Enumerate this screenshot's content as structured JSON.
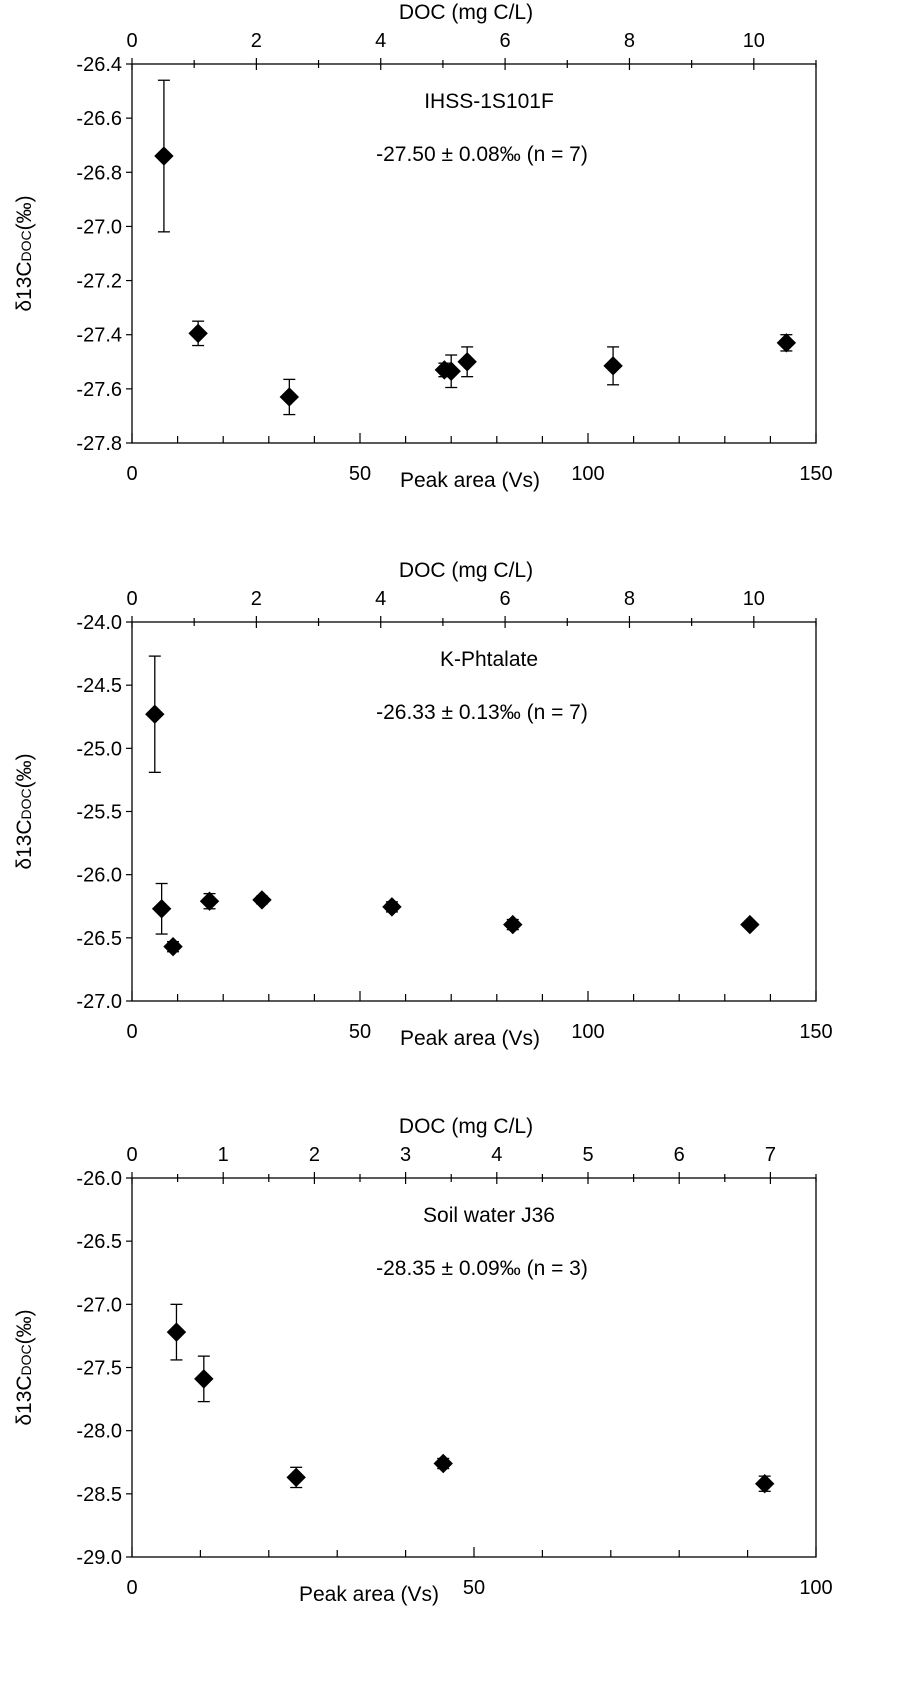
{
  "chart_data": [
    {
      "type": "scatter",
      "title": "IHSS-1S101F",
      "annotation": "-27.50 ± 0.08‰ (n = 7)",
      "xlabel": "Peak area (Vs)",
      "x2label": "DOC (mg C/L)",
      "ylabel": "δ13CDOC(‰)",
      "ylabel_main": "δ13C",
      "ylabel_sub": "DOC",
      "ylabel_tail": "(‰)",
      "xlim": [
        0,
        150
      ],
      "x2lim": [
        0,
        11
      ],
      "ylim": [
        -27.8,
        -26.4
      ],
      "xticks": [
        0,
        50,
        100,
        150
      ],
      "xticks_labels": [
        "0",
        "50",
        "100",
        "150"
      ],
      "x_minor_step": 10,
      "x2ticks": [
        0,
        2,
        4,
        6,
        8,
        10
      ],
      "x2ticks_labels": [
        "0",
        "2",
        "4",
        "6",
        "8",
        "10"
      ],
      "x2_minor_step": 1,
      "yticks": [
        -26.4,
        -26.6,
        -26.8,
        -27.0,
        -27.2,
        -27.4,
        -27.6,
        -27.8
      ],
      "yticks_labels": [
        "-26.4",
        "-26.6",
        "-26.8",
        "-27.0",
        "-27.2",
        "-27.4",
        "-27.6",
        "-27.8"
      ],
      "grid": false,
      "marker": "diamond",
      "color": "#000000",
      "series": [
        {
          "x": [
            7,
            14.5,
            34.5,
            68.5,
            70,
            73.5,
            105.5,
            143.5
          ],
          "y": [
            -26.74,
            -27.395,
            -27.63,
            -27.53,
            -27.535,
            -27.5,
            -27.515,
            -27.43
          ],
          "err": [
            0.28,
            0.045,
            0.065,
            0.025,
            0.06,
            0.055,
            0.07,
            0.03
          ]
        }
      ]
    },
    {
      "type": "scatter",
      "title": "K-Phtalate",
      "annotation": "-26.33 ± 0.13‰ (n = 7)",
      "xlabel": "Peak area (Vs)",
      "x2label": "DOC (mg C/L)",
      "ylabel": "δ13CDOC(‰)",
      "ylabel_main": "δ13C",
      "ylabel_sub": "DOC",
      "ylabel_tail": "(‰)",
      "xlim": [
        0,
        150
      ],
      "x2lim": [
        0,
        11
      ],
      "ylim": [
        -27.0,
        -24.0
      ],
      "xticks": [
        0,
        50,
        100,
        150
      ],
      "xticks_labels": [
        "0",
        "50",
        "100",
        "150"
      ],
      "x_minor_step": 10,
      "x2ticks": [
        0,
        2,
        4,
        6,
        8,
        10
      ],
      "x2ticks_labels": [
        "0",
        "2",
        "4",
        "6",
        "8",
        "10"
      ],
      "x2_minor_step": 1,
      "yticks": [
        -24.0,
        -24.5,
        -25.0,
        -25.5,
        -26.0,
        -26.5,
        -27.0
      ],
      "yticks_labels": [
        "-24.0",
        "-24.5",
        "-25.0",
        "-25.5",
        "-26.0",
        "-26.5",
        "-27.0"
      ],
      "grid": false,
      "marker": "diamond",
      "color": "#000000",
      "series": [
        {
          "x": [
            5,
            6.5,
            9,
            17,
            28.5,
            57,
            83.5,
            135.5
          ],
          "y": [
            -24.73,
            -26.27,
            -26.57,
            -26.21,
            -26.2,
            -26.255,
            -26.395,
            -26.395
          ],
          "err": [
            0.46,
            0.2,
            0.04,
            0.06,
            0.03,
            0.04,
            0.04,
            0.02
          ]
        }
      ]
    },
    {
      "type": "scatter",
      "title": "Soil water J36",
      "annotation": "-28.35 ± 0.09‰ (n = 3)",
      "xlabel": "Peak area (Vs)",
      "x2label": "DOC (mg C/L)",
      "ylabel": "δ13CDOC(‰)",
      "ylabel_main": "δ13C",
      "ylabel_sub": "DOC",
      "ylabel_tail": "(‰)",
      "xlim": [
        0,
        100
      ],
      "x2lim": [
        0,
        7.5
      ],
      "ylim": [
        -29.0,
        -26.0
      ],
      "xticks": [
        0,
        50,
        100
      ],
      "xticks_labels": [
        "0",
        "50",
        "100"
      ],
      "x_minor_step": 10,
      "x2ticks": [
        0,
        1,
        2,
        3,
        4,
        5,
        6,
        7
      ],
      "x2ticks_labels": [
        "0",
        "1",
        "2",
        "3",
        "4",
        "5",
        "6",
        "7"
      ],
      "x2_minor_step": 0.5,
      "yticks": [
        -26.0,
        -26.5,
        -27.0,
        -27.5,
        -28.0,
        -28.5,
        -29.0
      ],
      "yticks_labels": [
        "-26.0",
        "-26.5",
        "-27.0",
        "-27.5",
        "-28.0",
        "-28.5",
        "-29.0"
      ],
      "grid": false,
      "marker": "diamond",
      "color": "#000000",
      "series": [
        {
          "x": [
            6.5,
            10.5,
            24,
            45.5,
            92.5
          ],
          "y": [
            -27.22,
            -27.59,
            -28.37,
            -28.26,
            -28.42
          ],
          "err": [
            0.22,
            0.18,
            0.08,
            0.04,
            0.06
          ]
        }
      ]
    }
  ]
}
